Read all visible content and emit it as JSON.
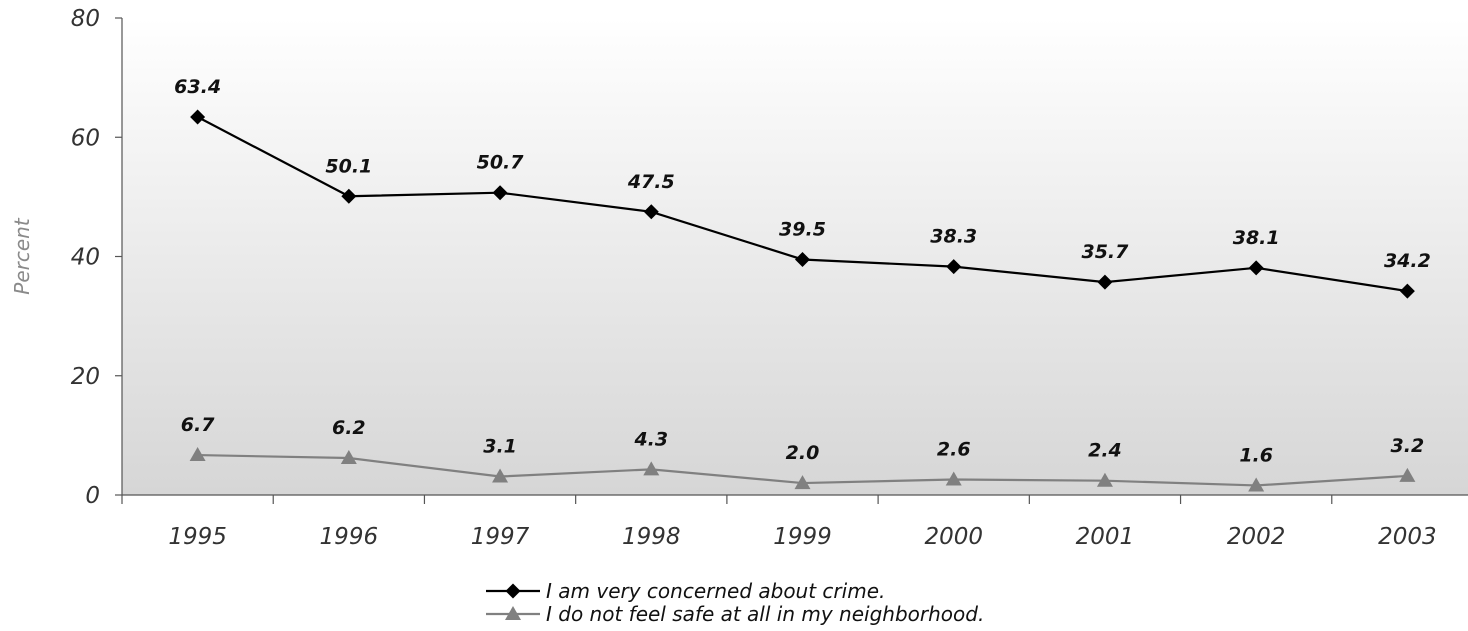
{
  "chart_data": {
    "type": "line",
    "categories": [
      "1995",
      "1996",
      "1997",
      "1998",
      "1999",
      "2000",
      "2001",
      "2002",
      "2003"
    ],
    "series": [
      {
        "name": "I am very concerned about crime.",
        "values": [
          63.4,
          50.1,
          50.7,
          47.5,
          39.5,
          38.3,
          35.7,
          38.1,
          34.2
        ],
        "labels": [
          "63.4",
          "50.1",
          "50.7",
          "47.5",
          "39.5",
          "38.3",
          "35.7",
          "38.1",
          "34.2"
        ],
        "color": "#000000",
        "marker": "diamond"
      },
      {
        "name": "I do not feel safe at all in my neighborhood.",
        "values": [
          6.7,
          6.2,
          3.1,
          4.3,
          2.0,
          2.6,
          2.4,
          1.6,
          3.2
        ],
        "labels": [
          "6.7",
          "6.2",
          "3.1",
          "4.3",
          "2.0",
          "2.6",
          "2.4",
          "1.6",
          "3.2"
        ],
        "color": "#808080",
        "marker": "triangle"
      }
    ],
    "ylabel": "Percent",
    "ylim": [
      0,
      80
    ],
    "yticks": [
      "0",
      "20",
      "40",
      "60",
      "80"
    ],
    "legend_position": "bottom",
    "background": "gradient white to gray",
    "grid": false
  }
}
